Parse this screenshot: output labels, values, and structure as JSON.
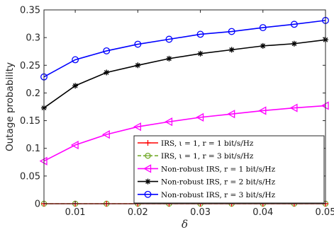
{
  "chart_data": {
    "type": "line",
    "title": "",
    "xlabel": "δ",
    "ylabel": "Outage probability",
    "xlim": [
      0.005,
      0.05
    ],
    "ylim": [
      0,
      0.35
    ],
    "xticks": [
      0.01,
      0.02,
      0.03,
      0.04,
      0.05
    ],
    "xtick_labels": [
      "0.01",
      "0.02",
      "0.03",
      "0.04",
      "0.05"
    ],
    "yticks": [
      0,
      0.05,
      0.1,
      0.15,
      0.2,
      0.25,
      0.3,
      0.35
    ],
    "ytick_labels": [
      "0",
      "0.05",
      "0.1",
      "0.15",
      "0.2",
      "0.25",
      "0.3",
      "0.35"
    ],
    "grid": false,
    "legend_position": "bottom-right",
    "x": [
      0.005,
      0.01,
      0.015,
      0.02,
      0.025,
      0.03,
      0.035,
      0.04,
      0.045,
      0.05
    ],
    "series": [
      {
        "name": "IRS, ι = 1, r = 1 bit/s/Hz",
        "color": "#ff0000",
        "marker": "plus",
        "dash": "solid",
        "values": [
          0,
          0,
          0,
          0,
          0,
          0,
          0,
          0,
          0,
          0
        ]
      },
      {
        "name": "IRS, ι = 1, r = 3 bit/s/Hz",
        "color": "#77ac30",
        "marker": "circle-h",
        "dash": "dashed",
        "values": [
          0,
          0,
          0,
          0,
          0,
          0,
          0,
          0,
          0,
          0
        ]
      },
      {
        "name": "Non-robust IRS, r = 1 bit/s/Hz",
        "color": "#ff00ff",
        "marker": "triangle-left",
        "dash": "solid",
        "values": [
          0.077,
          0.106,
          0.125,
          0.139,
          0.148,
          0.156,
          0.162,
          0.168,
          0.173,
          0.177
        ]
      },
      {
        "name": "Non-robust IRS, r = 2 bit/s/Hz",
        "color": "#000000",
        "marker": "asterisk",
        "dash": "solid",
        "values": [
          0.173,
          0.213,
          0.237,
          0.25,
          0.262,
          0.271,
          0.278,
          0.285,
          0.289,
          0.296
        ]
      },
      {
        "name": "Non-robust IRS, r = 3 bit/s/Hz",
        "color": "#0000ff",
        "marker": "circle",
        "dash": "solid",
        "values": [
          0.229,
          0.26,
          0.276,
          0.288,
          0.297,
          0.306,
          0.311,
          0.318,
          0.324,
          0.331
        ]
      }
    ]
  }
}
